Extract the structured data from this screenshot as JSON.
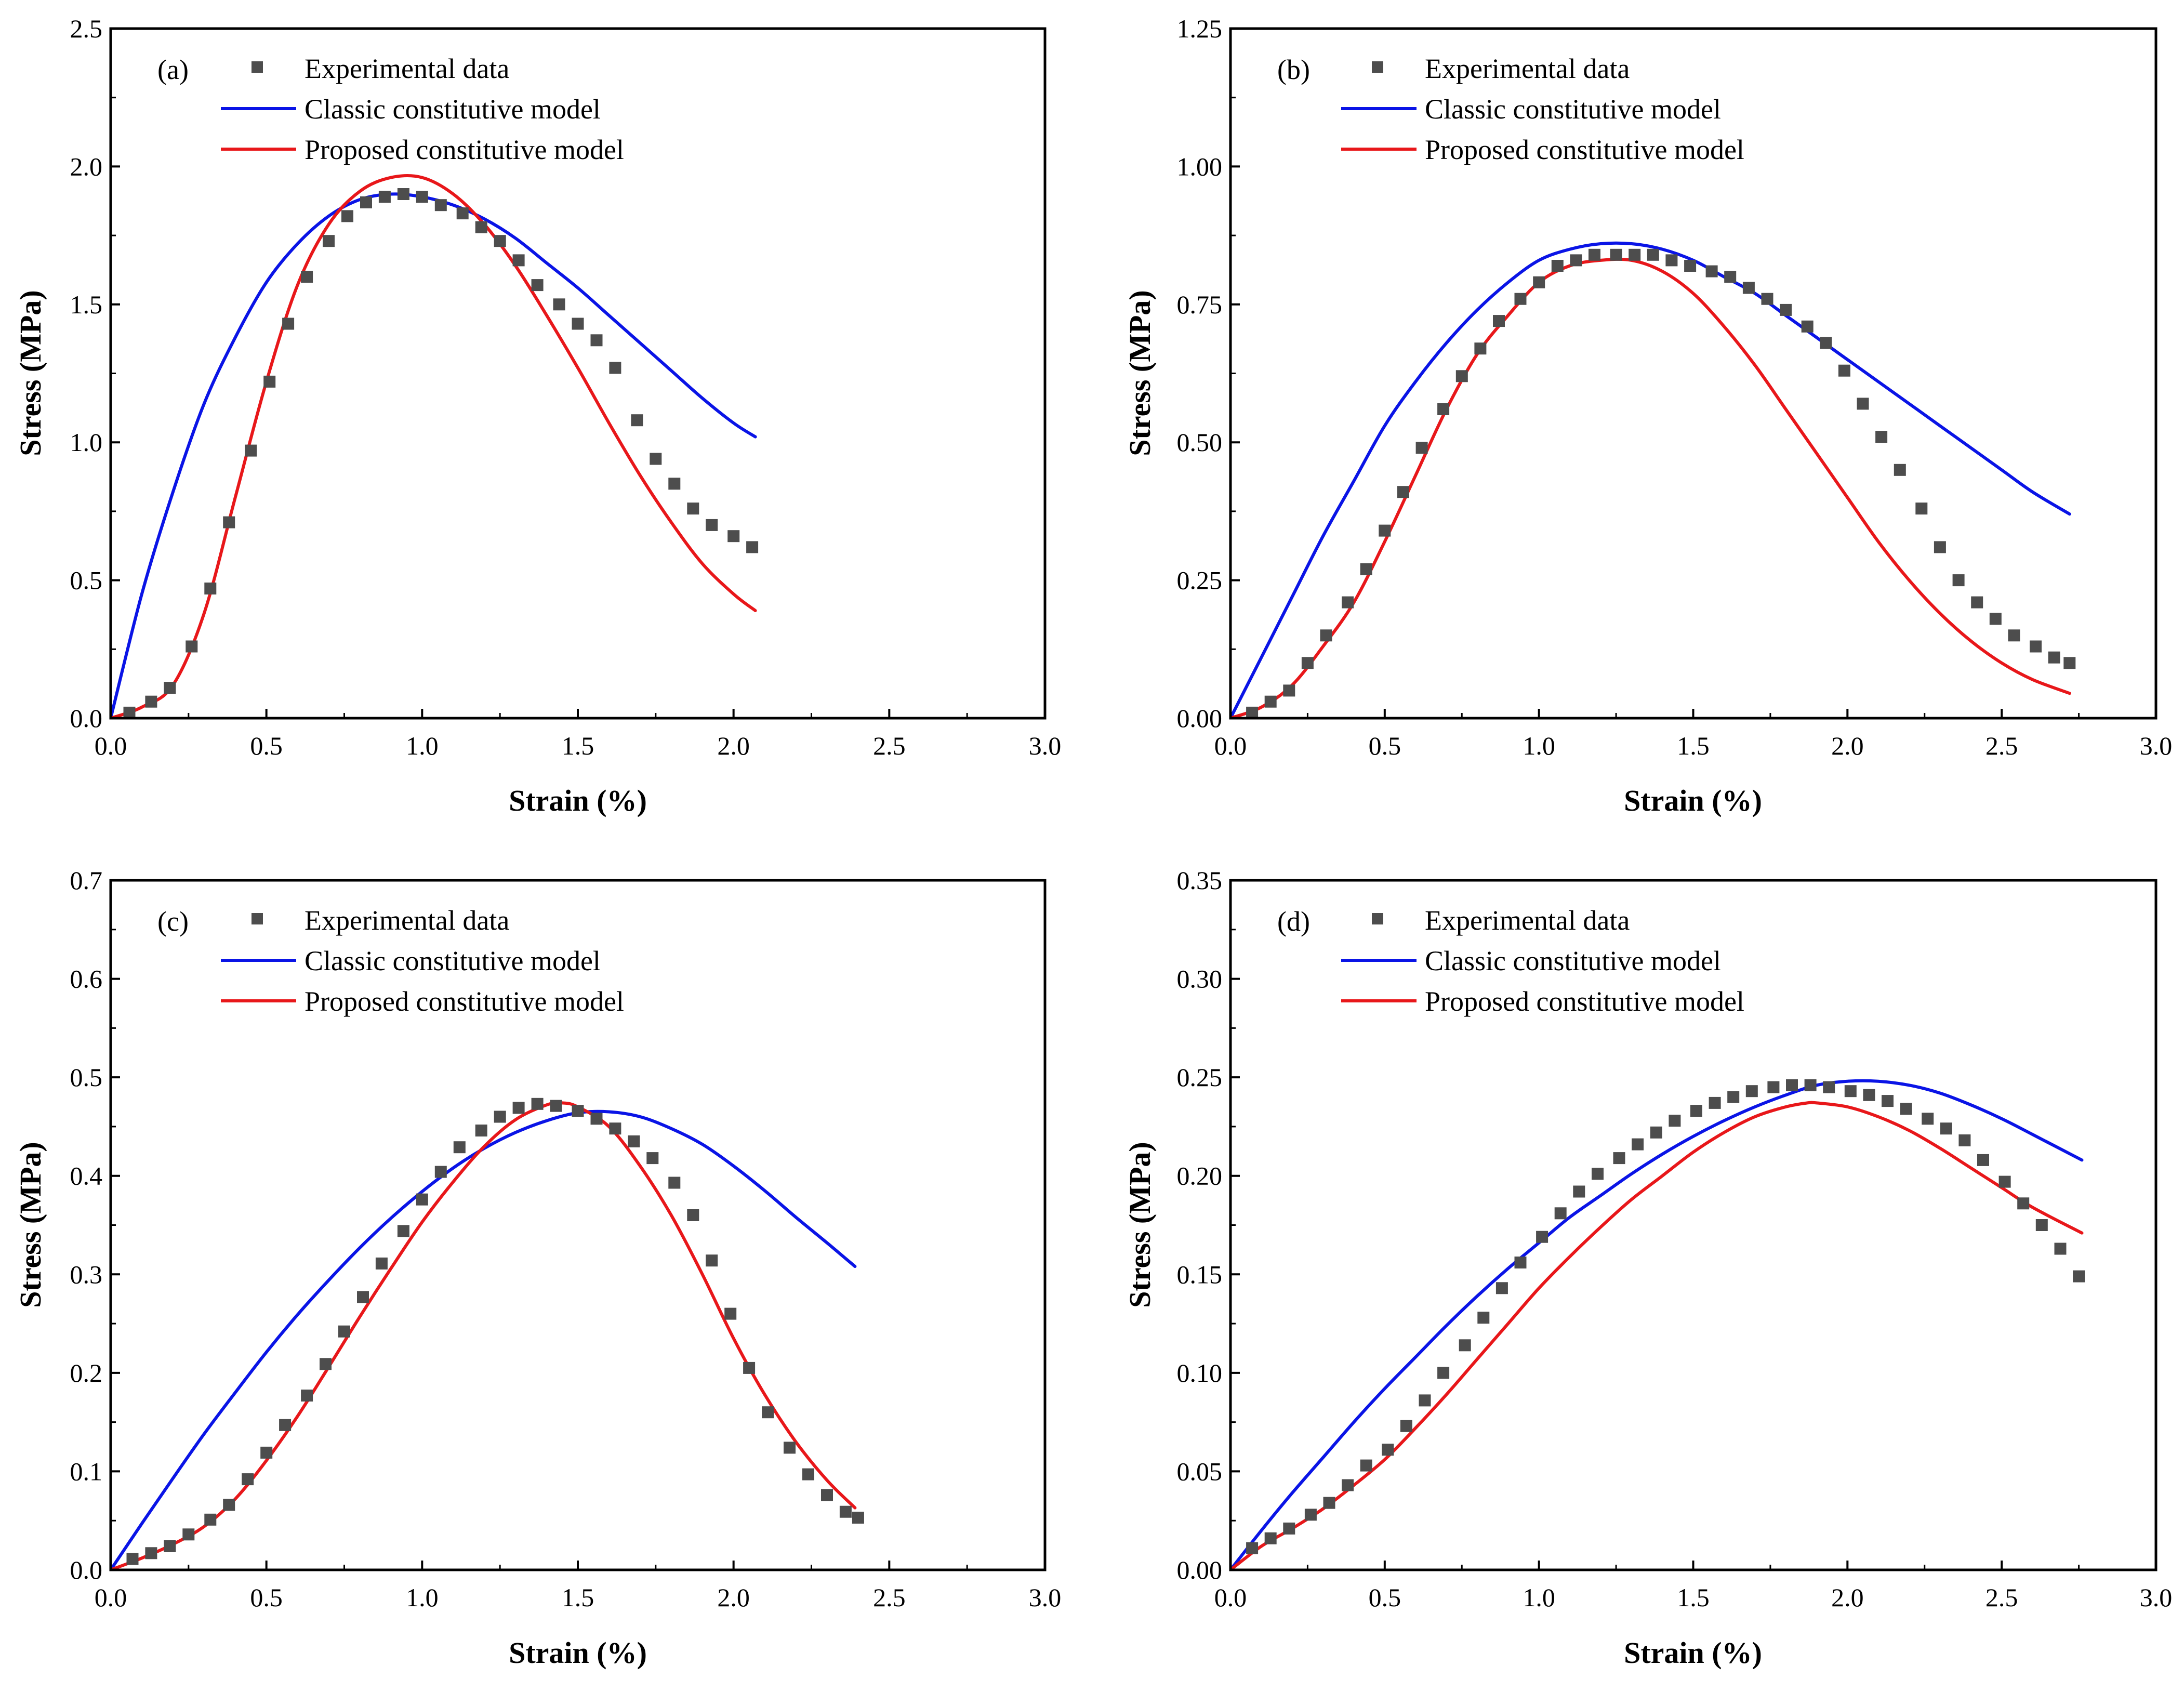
{
  "figure": {
    "legend": {
      "experimental": "Experimental data",
      "classic": "Classic constitutive model",
      "proposed": "Proposed constitutive model"
    },
    "colors": {
      "experimental": "#4d4d4d",
      "classic": "#0a14e6",
      "proposed": "#e8171a",
      "axis": "#000000"
    }
  },
  "chart_data": [
    {
      "panel_label": "(a)",
      "type": "scatter",
      "xlabel": "Strain (%)",
      "ylabel": "Stress (MPa)",
      "xlim": [
        0,
        3.0
      ],
      "ylim": [
        0,
        2.5
      ],
      "xticks": [
        "0.0",
        "0.5",
        "1.0",
        "1.5",
        "2.0",
        "2.5",
        "3.0"
      ],
      "yticks": [
        "0.0",
        "0.5",
        "1.0",
        "1.5",
        "2.0",
        "2.5"
      ],
      "legend_position": "top-left",
      "series": [
        {
          "name": "Experimental data",
          "kind": "markers",
          "x": [
            0.06,
            0.13,
            0.19,
            0.26,
            0.32,
            0.38,
            0.45,
            0.51,
            0.57,
            0.63,
            0.7,
            0.76,
            0.82,
            0.88,
            0.94,
            1.0,
            1.06,
            1.13,
            1.19,
            1.25,
            1.31,
            1.37,
            1.44,
            1.5,
            1.56,
            1.62,
            1.69,
            1.75,
            1.81,
            1.87,
            1.93,
            2.0,
            2.06
          ],
          "y": [
            0.02,
            0.06,
            0.11,
            0.26,
            0.47,
            0.71,
            0.97,
            1.22,
            1.43,
            1.6,
            1.73,
            1.82,
            1.87,
            1.89,
            1.9,
            1.89,
            1.86,
            1.83,
            1.78,
            1.73,
            1.66,
            1.57,
            1.5,
            1.43,
            1.37,
            1.27,
            1.08,
            0.94,
            0.85,
            0.76,
            0.7,
            0.66,
            0.62
          ]
        },
        {
          "name": "Classic constitutive model",
          "kind": "line",
          "x": [
            0,
            0.1,
            0.2,
            0.3,
            0.4,
            0.5,
            0.6,
            0.7,
            0.8,
            0.9,
            1.0,
            1.1,
            1.2,
            1.3,
            1.4,
            1.5,
            1.6,
            1.7,
            1.8,
            1.9,
            2.0,
            2.07
          ],
          "y": [
            0,
            0.45,
            0.82,
            1.14,
            1.38,
            1.58,
            1.72,
            1.82,
            1.88,
            1.9,
            1.89,
            1.86,
            1.81,
            1.74,
            1.65,
            1.56,
            1.46,
            1.36,
            1.26,
            1.16,
            1.07,
            1.02
          ]
        },
        {
          "name": "Proposed constitutive model",
          "kind": "line",
          "x": [
            0,
            0.1,
            0.2,
            0.3,
            0.4,
            0.5,
            0.6,
            0.7,
            0.8,
            0.9,
            1.0,
            1.1,
            1.2,
            1.3,
            1.4,
            1.5,
            1.6,
            1.7,
            1.8,
            1.9,
            2.0,
            2.07
          ],
          "y": [
            0,
            0.04,
            0.12,
            0.38,
            0.8,
            1.22,
            1.57,
            1.79,
            1.91,
            1.96,
            1.96,
            1.9,
            1.79,
            1.64,
            1.46,
            1.27,
            1.07,
            0.88,
            0.71,
            0.56,
            0.45,
            0.39
          ]
        }
      ]
    },
    {
      "panel_label": "(b)",
      "type": "scatter",
      "xlabel": "Strain (%)",
      "ylabel": "Stress (MPa)",
      "xlim": [
        0,
        3.0
      ],
      "ylim": [
        0,
        1.25
      ],
      "xticks": [
        "0.0",
        "0.5",
        "1.0",
        "1.5",
        "2.0",
        "2.5",
        "3.0"
      ],
      "yticks": [
        "0.00",
        "0.25",
        "0.50",
        "0.75",
        "1.00",
        "1.25"
      ],
      "legend_position": "top-left",
      "series": [
        {
          "name": "Experimental data",
          "kind": "markers",
          "x": [
            0.07,
            0.13,
            0.19,
            0.25,
            0.31,
            0.38,
            0.44,
            0.5,
            0.56,
            0.62,
            0.69,
            0.75,
            0.81,
            0.87,
            0.94,
            1.0,
            1.06,
            1.12,
            1.18,
            1.25,
            1.31,
            1.37,
            1.43,
            1.49,
            1.56,
            1.62,
            1.68,
            1.74,
            1.8,
            1.87,
            1.93,
            1.99,
            2.05,
            2.11,
            2.17,
            2.24,
            2.3,
            2.36,
            2.42,
            2.48,
            2.54,
            2.61,
            2.67,
            2.72
          ],
          "y": [
            0.01,
            0.03,
            0.05,
            0.1,
            0.15,
            0.21,
            0.27,
            0.34,
            0.41,
            0.49,
            0.56,
            0.62,
            0.67,
            0.72,
            0.76,
            0.79,
            0.82,
            0.83,
            0.84,
            0.84,
            0.84,
            0.84,
            0.83,
            0.82,
            0.81,
            0.8,
            0.78,
            0.76,
            0.74,
            0.71,
            0.68,
            0.63,
            0.57,
            0.51,
            0.45,
            0.38,
            0.31,
            0.25,
            0.21,
            0.18,
            0.15,
            0.13,
            0.11,
            0.1
          ]
        },
        {
          "name": "Classic constitutive model",
          "kind": "line",
          "x": [
            0,
            0.1,
            0.2,
            0.3,
            0.4,
            0.5,
            0.6,
            0.7,
            0.8,
            0.9,
            1.0,
            1.1,
            1.2,
            1.3,
            1.4,
            1.5,
            1.6,
            1.7,
            1.8,
            1.9,
            2.0,
            2.1,
            2.2,
            2.3,
            2.4,
            2.5,
            2.6,
            2.72
          ],
          "y": [
            0,
            0.11,
            0.22,
            0.33,
            0.43,
            0.53,
            0.61,
            0.68,
            0.74,
            0.79,
            0.83,
            0.85,
            0.86,
            0.86,
            0.85,
            0.83,
            0.8,
            0.77,
            0.73,
            0.69,
            0.65,
            0.61,
            0.57,
            0.53,
            0.49,
            0.45,
            0.41,
            0.37
          ]
        },
        {
          "name": "Proposed constitutive model",
          "kind": "line",
          "x": [
            0,
            0.1,
            0.2,
            0.3,
            0.4,
            0.5,
            0.6,
            0.7,
            0.8,
            0.9,
            1.0,
            1.1,
            1.2,
            1.3,
            1.4,
            1.5,
            1.6,
            1.7,
            1.8,
            1.9,
            2.0,
            2.1,
            2.2,
            2.3,
            2.4,
            2.5,
            2.6,
            2.72
          ],
          "y": [
            0,
            0.02,
            0.06,
            0.13,
            0.21,
            0.32,
            0.44,
            0.56,
            0.66,
            0.73,
            0.79,
            0.82,
            0.83,
            0.83,
            0.81,
            0.77,
            0.71,
            0.64,
            0.56,
            0.48,
            0.4,
            0.32,
            0.25,
            0.19,
            0.14,
            0.1,
            0.07,
            0.045
          ]
        }
      ]
    },
    {
      "panel_label": "(c)",
      "type": "scatter",
      "xlabel": "Strain (%)",
      "ylabel": "Stress (MPa)",
      "xlim": [
        0,
        3.0
      ],
      "ylim": [
        0,
        0.7
      ],
      "xticks": [
        "0.0",
        "0.5",
        "1.0",
        "1.5",
        "2.0",
        "2.5",
        "3.0"
      ],
      "yticks": [
        "0.0",
        "0.1",
        "0.2",
        "0.3",
        "0.4",
        "0.5",
        "0.6",
        "0.7"
      ],
      "legend_position": "top-left",
      "series": [
        {
          "name": "Experimental data",
          "kind": "markers",
          "x": [
            0.07,
            0.13,
            0.19,
            0.25,
            0.32,
            0.38,
            0.44,
            0.5,
            0.56,
            0.63,
            0.69,
            0.75,
            0.81,
            0.87,
            0.94,
            1.0,
            1.06,
            1.12,
            1.19,
            1.25,
            1.31,
            1.37,
            1.43,
            1.5,
            1.56,
            1.62,
            1.68,
            1.74,
            1.81,
            1.87,
            1.93,
            1.99,
            2.05,
            2.11,
            2.18,
            2.24,
            2.3,
            2.36,
            2.4
          ],
          "y": [
            0.011,
            0.017,
            0.024,
            0.036,
            0.051,
            0.066,
            0.092,
            0.119,
            0.147,
            0.177,
            0.209,
            0.242,
            0.277,
            0.311,
            0.344,
            0.376,
            0.404,
            0.429,
            0.446,
            0.46,
            0.469,
            0.473,
            0.471,
            0.466,
            0.458,
            0.448,
            0.435,
            0.418,
            0.393,
            0.36,
            0.314,
            0.26,
            0.205,
            0.16,
            0.124,
            0.097,
            0.076,
            0.059,
            0.053
          ]
        },
        {
          "name": "Classic constitutive model",
          "kind": "line",
          "x": [
            0,
            0.1,
            0.2,
            0.3,
            0.4,
            0.5,
            0.6,
            0.7,
            0.8,
            0.9,
            1.0,
            1.1,
            1.2,
            1.3,
            1.4,
            1.5,
            1.6,
            1.7,
            1.8,
            1.9,
            2.0,
            2.1,
            2.2,
            2.3,
            2.39
          ],
          "y": [
            0,
            0.047,
            0.093,
            0.138,
            0.18,
            0.221,
            0.259,
            0.294,
            0.327,
            0.357,
            0.384,
            0.408,
            0.428,
            0.444,
            0.456,
            0.464,
            0.465,
            0.46,
            0.448,
            0.432,
            0.41,
            0.385,
            0.358,
            0.332,
            0.308
          ]
        },
        {
          "name": "Proposed constitutive model",
          "kind": "line",
          "x": [
            0,
            0.1,
            0.2,
            0.3,
            0.4,
            0.5,
            0.6,
            0.7,
            0.8,
            0.9,
            1.0,
            1.1,
            1.2,
            1.3,
            1.4,
            1.45,
            1.5,
            1.6,
            1.7,
            1.8,
            1.9,
            2.0,
            2.1,
            2.2,
            2.3,
            2.39
          ],
          "y": [
            0,
            0.012,
            0.026,
            0.044,
            0.072,
            0.111,
            0.156,
            0.206,
            0.257,
            0.306,
            0.353,
            0.394,
            0.43,
            0.457,
            0.472,
            0.474,
            0.47,
            0.45,
            0.41,
            0.36,
            0.3,
            0.235,
            0.178,
            0.13,
            0.091,
            0.063
          ]
        }
      ]
    },
    {
      "panel_label": "(d)",
      "type": "scatter",
      "xlabel": "Strain (%)",
      "ylabel": "Stress (MPa)",
      "xlim": [
        0,
        3.0
      ],
      "ylim": [
        0,
        0.35
      ],
      "xticks": [
        "0.0",
        "0.5",
        "1.0",
        "1.5",
        "2.0",
        "2.5",
        "3.0"
      ],
      "yticks": [
        "0.00",
        "0.05",
        "0.10",
        "0.15",
        "0.20",
        "0.25",
        "0.30",
        "0.35"
      ],
      "legend_position": "top-left",
      "series": [
        {
          "name": "Experimental data",
          "kind": "markers",
          "x": [
            0.07,
            0.13,
            0.19,
            0.26,
            0.32,
            0.38,
            0.44,
            0.51,
            0.57,
            0.63,
            0.69,
            0.76,
            0.82,
            0.88,
            0.94,
            1.01,
            1.07,
            1.13,
            1.19,
            1.26,
            1.32,
            1.38,
            1.44,
            1.51,
            1.57,
            1.63,
            1.69,
            1.76,
            1.82,
            1.88,
            1.94,
            2.01,
            2.07,
            2.13,
            2.19,
            2.26,
            2.32,
            2.38,
            2.44,
            2.51,
            2.57,
            2.63,
            2.69,
            2.75
          ],
          "y": [
            0.011,
            0.016,
            0.021,
            0.028,
            0.034,
            0.043,
            0.053,
            0.061,
            0.073,
            0.086,
            0.1,
            0.114,
            0.128,
            0.143,
            0.156,
            0.169,
            0.181,
            0.192,
            0.201,
            0.209,
            0.216,
            0.222,
            0.228,
            0.233,
            0.237,
            0.24,
            0.243,
            0.245,
            0.246,
            0.246,
            0.245,
            0.243,
            0.241,
            0.238,
            0.234,
            0.229,
            0.224,
            0.218,
            0.208,
            0.197,
            0.186,
            0.175,
            0.163,
            0.149
          ]
        },
        {
          "name": "Classic constitutive model",
          "kind": "line",
          "x": [
            0,
            0.1,
            0.2,
            0.3,
            0.4,
            0.5,
            0.6,
            0.7,
            0.8,
            0.9,
            1.0,
            1.1,
            1.2,
            1.3,
            1.4,
            1.5,
            1.6,
            1.7,
            1.8,
            1.9,
            2.0,
            2.1,
            2.2,
            2.3,
            2.4,
            2.5,
            2.6,
            2.76
          ],
          "y": [
            0,
            0.02,
            0.039,
            0.057,
            0.075,
            0.092,
            0.108,
            0.124,
            0.139,
            0.153,
            0.166,
            0.179,
            0.19,
            0.201,
            0.211,
            0.22,
            0.228,
            0.235,
            0.241,
            0.246,
            0.248,
            0.248,
            0.246,
            0.242,
            0.236,
            0.229,
            0.221,
            0.208
          ]
        },
        {
          "name": "Proposed constitutive model",
          "kind": "line",
          "x": [
            0,
            0.1,
            0.2,
            0.3,
            0.4,
            0.5,
            0.6,
            0.7,
            0.8,
            0.9,
            1.0,
            1.1,
            1.2,
            1.3,
            1.4,
            1.5,
            1.6,
            1.7,
            1.8,
            1.87,
            1.9,
            2.0,
            2.1,
            2.2,
            2.3,
            2.4,
            2.5,
            2.6,
            2.76
          ],
          "y": [
            0,
            0.012,
            0.021,
            0.031,
            0.043,
            0.056,
            0.072,
            0.089,
            0.107,
            0.125,
            0.143,
            0.159,
            0.174,
            0.188,
            0.2,
            0.212,
            0.222,
            0.23,
            0.235,
            0.237,
            0.237,
            0.235,
            0.23,
            0.223,
            0.214,
            0.204,
            0.194,
            0.184,
            0.171
          ]
        }
      ]
    }
  ]
}
